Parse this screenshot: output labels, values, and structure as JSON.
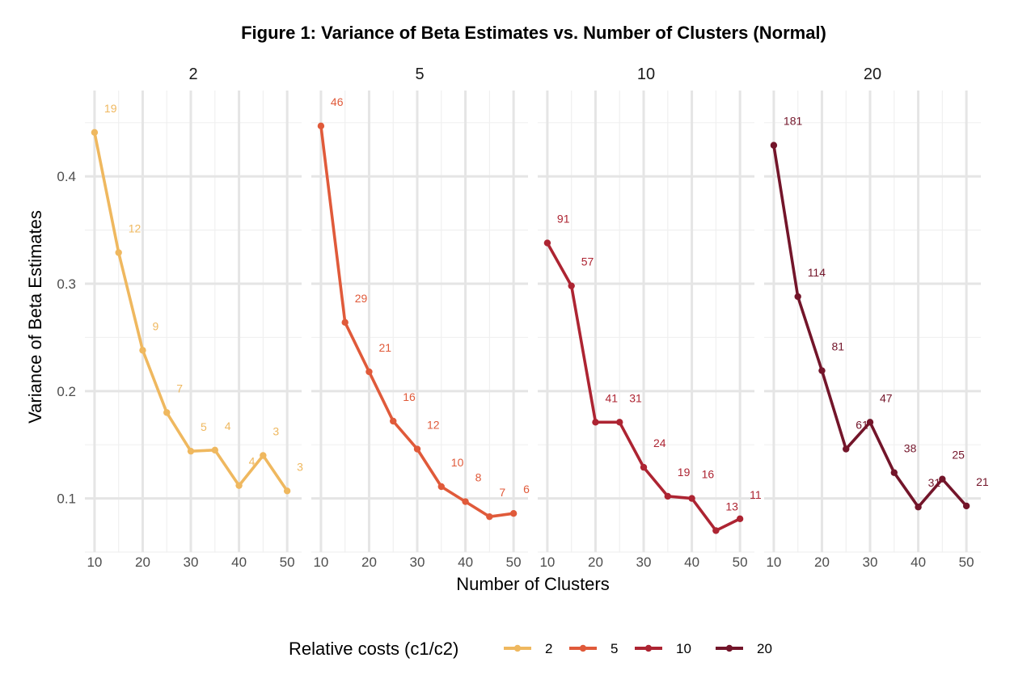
{
  "chart_data": {
    "type": "line",
    "title": "Figure 1: Variance of Beta Estimates vs. Number of Clusters (Normal)",
    "xlabel": "Number of Clusters",
    "ylabel": "Variance of Beta Estimates",
    "x_ticks": [
      10,
      20,
      30,
      40,
      50
    ],
    "y_ticks": [
      0.1,
      0.2,
      0.3,
      0.4
    ],
    "y_tick_labels": [
      "0.1",
      "0.2",
      "0.3",
      "0.4"
    ],
    "xlim": [
      8,
      53
    ],
    "ylim": [
      0.05,
      0.48
    ],
    "grid": true,
    "legend": {
      "title": "Relative costs (c1/c2)",
      "position": "bottom"
    },
    "x": [
      10,
      15,
      20,
      25,
      30,
      35,
      40,
      45,
      50
    ],
    "series": [
      {
        "name": "2",
        "color": "#efb85f",
        "values": [
          0.441,
          0.329,
          0.238,
          0.18,
          0.144,
          0.145,
          0.112,
          0.14,
          0.107
        ],
        "labels": [
          "19",
          "12",
          "9",
          "7",
          "5",
          "4",
          "4",
          "3",
          "3"
        ]
      },
      {
        "name": "5",
        "color": "#e05a3a",
        "values": [
          0.447,
          0.264,
          0.218,
          0.172,
          0.146,
          0.111,
          0.097,
          0.083,
          0.086
        ],
        "labels": [
          "46",
          "29",
          "21",
          "16",
          "12",
          "10",
          "8",
          "7",
          "6"
        ]
      },
      {
        "name": "10",
        "color": "#ad2432",
        "values": [
          0.338,
          0.298,
          0.171,
          0.171,
          0.129,
          0.102,
          0.1,
          0.07,
          0.081
        ],
        "labels": [
          "91",
          "57",
          "41",
          "31",
          "24",
          "19",
          "16",
          "13",
          "11"
        ]
      },
      {
        "name": "20",
        "color": "#73152a",
        "values": [
          0.429,
          0.288,
          0.219,
          0.146,
          0.171,
          0.124,
          0.092,
          0.118,
          0.093
        ],
        "labels": [
          "181",
          "114",
          "81",
          "61",
          "47",
          "38",
          "31",
          "25",
          "21"
        ]
      }
    ]
  }
}
